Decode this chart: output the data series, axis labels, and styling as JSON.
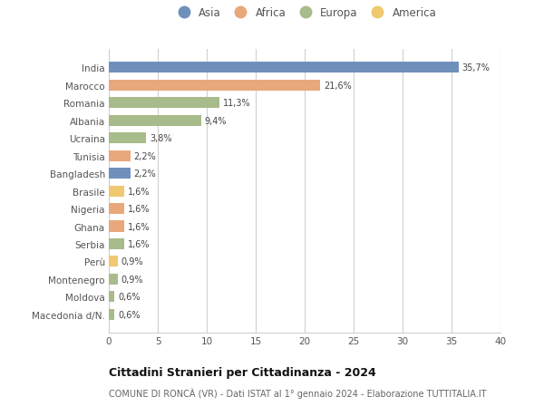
{
  "countries": [
    "India",
    "Marocco",
    "Romania",
    "Albania",
    "Ucraina",
    "Tunisia",
    "Bangladesh",
    "Brasile",
    "Nigeria",
    "Ghana",
    "Serbia",
    "Perù",
    "Montenegro",
    "Moldova",
    "Macedonia d/N."
  ],
  "values": [
    35.7,
    21.6,
    11.3,
    9.4,
    3.8,
    2.2,
    2.2,
    1.6,
    1.6,
    1.6,
    1.6,
    0.9,
    0.9,
    0.6,
    0.6
  ],
  "labels": [
    "35,7%",
    "21,6%",
    "11,3%",
    "9,4%",
    "3,8%",
    "2,2%",
    "2,2%",
    "1,6%",
    "1,6%",
    "1,6%",
    "1,6%",
    "0,9%",
    "0,9%",
    "0,6%",
    "0,6%"
  ],
  "continents": [
    "Asia",
    "Africa",
    "Europa",
    "Europa",
    "Europa",
    "Africa",
    "Asia",
    "America",
    "Africa",
    "Africa",
    "Europa",
    "America",
    "Europa",
    "Europa",
    "Europa"
  ],
  "colors": {
    "Asia": "#7090bc",
    "Africa": "#e8a87c",
    "Europa": "#a8bb8a",
    "America": "#f0c870"
  },
  "legend_order": [
    "Asia",
    "Africa",
    "Europa",
    "America"
  ],
  "xlim": [
    0,
    40
  ],
  "xticks": [
    0,
    5,
    10,
    15,
    20,
    25,
    30,
    35,
    40
  ],
  "title": "Cittadini Stranieri per Cittadinanza - 2024",
  "subtitle": "COMUNE DI RONCÀ (VR) - Dati ISTAT al 1° gennaio 2024 - Elaborazione TUTTITALIA.IT",
  "bg_color": "#ffffff",
  "grid_color": "#d0d0d0",
  "bar_height": 0.62
}
